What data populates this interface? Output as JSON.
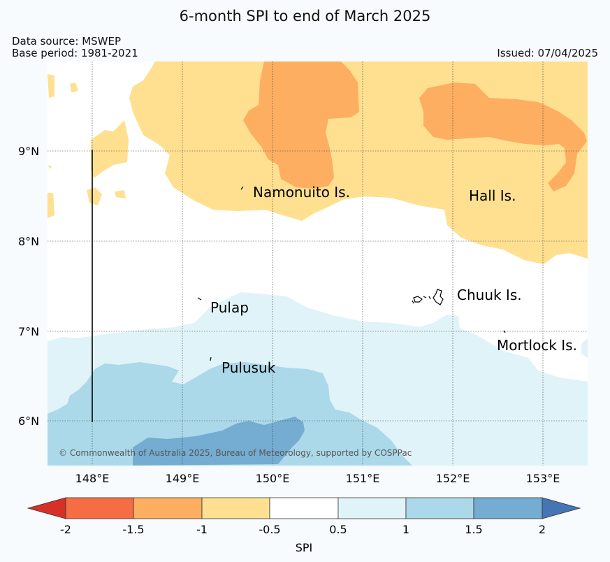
{
  "header": {
    "title": "6-month SPI to end of March 2025",
    "data_source": "Data source: MSWEP",
    "base_period": "Base period: 1981-2021",
    "issued": "Issued: 07/04/2025"
  },
  "map": {
    "lat_labels": [
      "9°N",
      "8°N",
      "7°N",
      "6°N"
    ],
    "lon_labels": [
      "148°E",
      "149°E",
      "150°E",
      "151°E",
      "152°E",
      "153°E"
    ],
    "places": {
      "namonuito": "Namonuito Is.",
      "hall": "Hall Is.",
      "pulap": "Pulap",
      "chuuk": "Chuuk Is.",
      "pulusuk": "Pulusuk",
      "mortlock": "Mortlock Is."
    },
    "copyright": "© Commonwealth of Australia 2025, Bureau of Meteorology, supported by COSPPac"
  },
  "colorbar": {
    "label": "SPI",
    "ticks": [
      "-2",
      "-1.5",
      "-1",
      "-0.5",
      "0.5",
      "1",
      "1.5",
      "2"
    ],
    "colors": {
      "extreme_dry": "#d73027",
      "very_dry": "#f46d43",
      "moderately_dry": "#fdae61",
      "slightly_dry": "#fee090",
      "normal": "#ffffff",
      "slightly_wet": "#e0f3f8",
      "moderately_wet": "#abd9e9",
      "very_wet": "#74add1",
      "extreme_wet": "#4575b4"
    }
  }
}
